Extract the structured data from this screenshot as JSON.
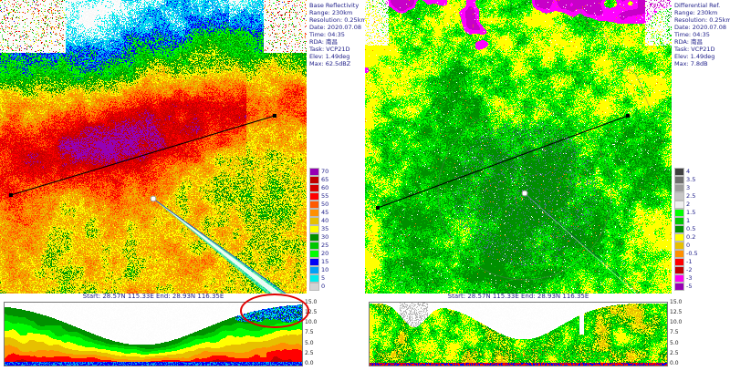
{
  "panels": {
    "left": {
      "info": [
        "Base Reflectivity",
        "Range: 230km",
        "Resolution: 0.25km",
        "Date: 2020.07.08",
        "Time: 04:35",
        "RDA: 南昌",
        "Task: VCP21D",
        "Elev: 1.49deg",
        "Max: 62.5dBZ"
      ],
      "colorbar": {
        "labels": [
          "70",
          "65",
          "60",
          "55",
          "50",
          "45",
          "40",
          "35",
          "30",
          "25",
          "20",
          "15",
          "10",
          "5",
          "0"
        ],
        "colors": [
          "#9600B4",
          "#C00000",
          "#D60000",
          "#FF0000",
          "#FF5A00",
          "#FF9000",
          "#E7C000",
          "#FFFF00",
          "#019000",
          "#00C800",
          "#00FF00",
          "#0000F6",
          "#01A0F6",
          "#00ECEC",
          "#D3D3D3"
        ]
      },
      "cross_section_title": "Start: 28.57N 115.33E End: 28.93N 116.35E",
      "height_axis": [
        "15.0",
        "12.5",
        "10.0",
        "7.5",
        "5.0",
        "2.5",
        "0.0"
      ]
    },
    "right": {
      "info": [
        "Differential Ref.",
        "Range: 230km",
        "Resolution: 0.25km",
        "Date: 2020.07.08",
        "Time: 04:35",
        "RDA: 南昌",
        "Task: VCP21D",
        "Elev: 1.49deg",
        "Max: 7.8dB"
      ],
      "colorbar": {
        "labels": [
          "4",
          "3.5",
          "3",
          "2.5",
          "2",
          "1.5",
          "1",
          "0.5",
          "0.2",
          "0",
          "-0.5",
          "-1",
          "-2",
          "-3",
          "-5"
        ],
        "colors": [
          "#404040",
          "#6E6E6E",
          "#9C9C9C",
          "#C6C6C6",
          "#EFEFEF",
          "#00FF00",
          "#00C800",
          "#009000",
          "#FFFF00",
          "#E7C000",
          "#FF9000",
          "#FF0000",
          "#C00000",
          "#FF00F0",
          "#9600B4"
        ]
      },
      "cross_section_title": "Start: 28.57N 115.33E End: 28.93N 116.35E",
      "height_axis": [
        "15.0",
        "12.5",
        "10.0",
        "7.5",
        "5.0",
        "2.5",
        "0.0"
      ]
    }
  },
  "chart_data": [
    {
      "type": "heatmap",
      "title": "Base Reflectivity",
      "units": "dBZ",
      "range": "230km",
      "resolution": "0.25km",
      "date": "2020.07.08",
      "time": "04:35",
      "rda": "南昌",
      "task": "VCP21D",
      "elev": "1.49deg",
      "max": "62.5dBZ",
      "colorbar_labels": [
        70,
        65,
        60,
        55,
        50,
        45,
        40,
        35,
        30,
        25,
        20,
        15,
        10,
        5,
        0
      ],
      "cross_section": {
        "start": "28.57N 115.33E",
        "end": "28.93N 116.35E",
        "height_axis_km": [
          15.0,
          12.5,
          10.0,
          7.5,
          5.0,
          2.5,
          0.0
        ]
      }
    },
    {
      "type": "heatmap",
      "title": "Differential Ref.",
      "units": "dB",
      "range": "230km",
      "resolution": "0.25km",
      "date": "2020.07.08",
      "time": "04:35",
      "rda": "南昌",
      "task": "VCP21D",
      "elev": "1.49deg",
      "max": "7.8dB",
      "colorbar_labels": [
        4,
        3.5,
        3,
        2.5,
        2,
        1.5,
        1,
        0.5,
        0.2,
        0,
        -0.5,
        -1,
        -2,
        -3,
        -5
      ],
      "cross_section": {
        "start": "28.57N 115.33E",
        "end": "28.93N 116.35E",
        "height_axis_km": [
          15.0,
          12.5,
          10.0,
          7.5,
          5.0,
          2.5,
          0.0
        ]
      }
    }
  ]
}
